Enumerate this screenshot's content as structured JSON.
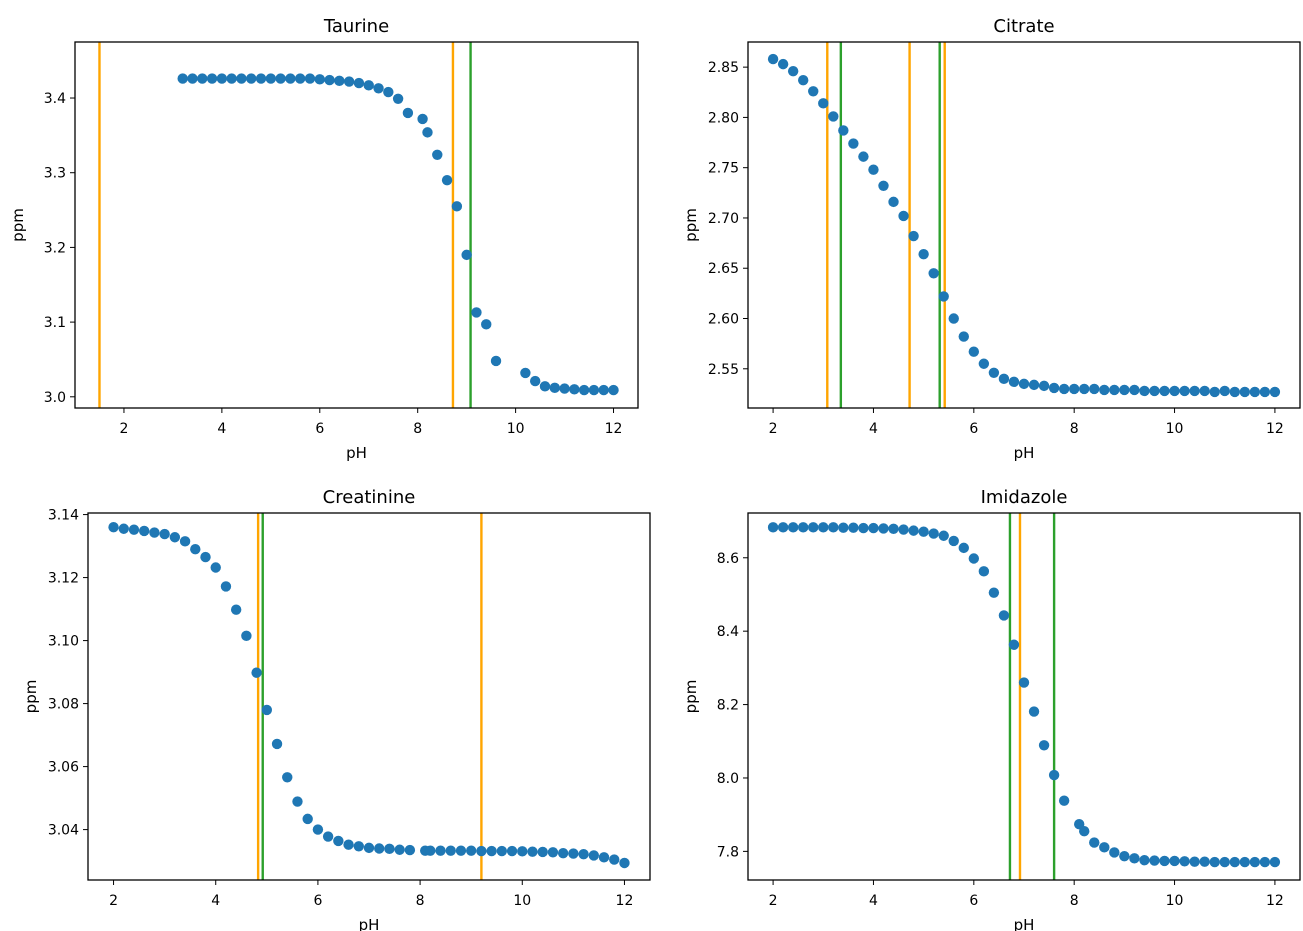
{
  "colors": {
    "marker": "#1f77b4",
    "orange_line": "#ffa500",
    "green_line": "#2ca02c"
  },
  "chart_data": [
    {
      "type": "scatter",
      "title": "Taurine",
      "xlabel": "pH",
      "ylabel": "ppm",
      "xlim": [
        1.0,
        12.5
      ],
      "ylim": [
        2.985,
        3.475
      ],
      "xticks": [
        2,
        4,
        6,
        8,
        10,
        12
      ],
      "yticks": [
        3.0,
        3.1,
        3.2,
        3.3,
        3.4
      ],
      "ytick_labels": [
        "3.0",
        "3.1",
        "3.2",
        "3.3",
        "3.4"
      ],
      "grid": false,
      "vlines_orange": [
        1.5,
        8.72
      ],
      "vlines_green": [
        9.08
      ],
      "x": [
        3.2,
        3.4,
        3.6,
        3.8,
        4.0,
        4.2,
        4.4,
        4.6,
        4.8,
        5.0,
        5.2,
        5.4,
        5.6,
        5.8,
        6.0,
        6.2,
        6.4,
        6.6,
        6.8,
        7.0,
        7.2,
        7.4,
        7.6,
        7.8,
        8.1,
        8.2,
        8.4,
        8.6,
        8.8,
        9.0,
        9.2,
        9.4,
        9.6,
        10.2,
        10.4,
        10.6,
        10.8,
        11.0,
        11.2,
        11.4,
        11.6,
        11.8,
        12.0
      ],
      "y": [
        3.426,
        3.426,
        3.426,
        3.426,
        3.426,
        3.426,
        3.426,
        3.426,
        3.426,
        3.426,
        3.426,
        3.426,
        3.426,
        3.426,
        3.425,
        3.424,
        3.423,
        3.422,
        3.42,
        3.417,
        3.413,
        3.408,
        3.399,
        3.38,
        3.372,
        3.354,
        3.324,
        3.29,
        3.255,
        3.19,
        3.113,
        3.097,
        3.048,
        3.032,
        3.021,
        3.014,
        3.012,
        3.011,
        3.01,
        3.009,
        3.009,
        3.009,
        3.009
      ]
    },
    {
      "type": "scatter",
      "title": "Citrate",
      "xlabel": "pH",
      "ylabel": "ppm",
      "xlim": [
        1.5,
        12.5
      ],
      "ylim": [
        2.511,
        2.875
      ],
      "xticks": [
        2,
        4,
        6,
        8,
        10,
        12
      ],
      "yticks": [
        2.55,
        2.6,
        2.65,
        2.7,
        2.75,
        2.8,
        2.85
      ],
      "ytick_labels": [
        "2.55",
        "2.60",
        "2.65",
        "2.70",
        "2.75",
        "2.80",
        "2.85"
      ],
      "grid": false,
      "vlines_orange": [
        3.08,
        4.72,
        5.42
      ],
      "vlines_green": [
        3.35,
        5.32
      ],
      "x": [
        2.0,
        2.2,
        2.4,
        2.6,
        2.8,
        3.0,
        3.2,
        3.4,
        3.6,
        3.8,
        4.0,
        4.2,
        4.4,
        4.6,
        4.8,
        5.0,
        5.2,
        5.4,
        5.6,
        5.8,
        6.0,
        6.2,
        6.4,
        6.6,
        6.8,
        7.0,
        7.2,
        7.4,
        7.6,
        7.8,
        8.0,
        8.2,
        8.4,
        8.6,
        8.8,
        9.0,
        9.2,
        9.4,
        9.6,
        9.8,
        10.0,
        10.2,
        10.4,
        10.6,
        10.8,
        11.0,
        11.2,
        11.4,
        11.6,
        11.8,
        12.0
      ],
      "y": [
        2.858,
        2.853,
        2.846,
        2.837,
        2.826,
        2.814,
        2.801,
        2.787,
        2.774,
        2.761,
        2.748,
        2.732,
        2.716,
        2.702,
        2.682,
        2.664,
        2.645,
        2.622,
        2.6,
        2.582,
        2.567,
        2.555,
        2.546,
        2.54,
        2.537,
        2.535,
        2.534,
        2.533,
        2.531,
        2.53,
        2.53,
        2.53,
        2.53,
        2.529,
        2.529,
        2.529,
        2.529,
        2.528,
        2.528,
        2.528,
        2.528,
        2.528,
        2.528,
        2.528,
        2.527,
        2.528,
        2.527,
        2.527,
        2.527,
        2.527,
        2.527
      ]
    },
    {
      "type": "scatter",
      "title": "Creatinine",
      "xlabel": "pH",
      "ylabel": "ppm",
      "xlim": [
        1.5,
        12.5
      ],
      "ylim": [
        3.024,
        3.1405
      ],
      "xticks": [
        2,
        4,
        6,
        8,
        10,
        12
      ],
      "yticks": [
        3.04,
        3.06,
        3.08,
        3.1,
        3.12,
        3.14
      ],
      "ytick_labels": [
        "3.04",
        "3.06",
        "3.08",
        "3.10",
        "3.12",
        "3.14"
      ],
      "grid": false,
      "vlines_orange": [
        4.83,
        9.2
      ],
      "vlines_green": [
        4.92
      ],
      "x": [
        2.0,
        2.2,
        2.4,
        2.6,
        2.8,
        3.0,
        3.2,
        3.4,
        3.6,
        3.8,
        4.0,
        4.2,
        4.4,
        4.6,
        4.8,
        5.0,
        5.2,
        5.4,
        5.6,
        5.8,
        6.0,
        6.2,
        6.4,
        6.6,
        6.8,
        7.0,
        7.2,
        7.4,
        7.6,
        7.8,
        8.1,
        8.2,
        8.4,
        8.6,
        8.8,
        9.0,
        9.2,
        9.4,
        9.6,
        9.8,
        10.0,
        10.2,
        10.4,
        10.6,
        10.8,
        11.0,
        11.2,
        11.4,
        11.6,
        11.8,
        12.0
      ],
      "y": [
        3.136,
        3.1355,
        3.1352,
        3.1348,
        3.1343,
        3.1338,
        3.1328,
        3.1315,
        3.129,
        3.1265,
        3.1232,
        3.1172,
        3.1098,
        3.1015,
        3.0898,
        3.078,
        3.0672,
        3.0566,
        3.0489,
        3.0434,
        3.04,
        3.0378,
        3.0364,
        3.0352,
        3.0347,
        3.0342,
        3.034,
        3.0339,
        3.0336,
        3.0335,
        3.0333,
        3.0333,
        3.0333,
        3.0333,
        3.0333,
        3.0333,
        3.0332,
        3.0332,
        3.0332,
        3.0332,
        3.0331,
        3.033,
        3.0329,
        3.0328,
        3.0325,
        3.0324,
        3.0322,
        3.0318,
        3.0312,
        3.0305,
        3.0294
      ]
    },
    {
      "type": "scatter",
      "title": "Imidazole",
      "xlabel": "pH",
      "ylabel": "ppm",
      "xlim": [
        1.5,
        12.5
      ],
      "ylim": [
        7.722,
        8.722
      ],
      "xticks": [
        2,
        4,
        6,
        8,
        10,
        12
      ],
      "yticks": [
        7.8,
        8.0,
        8.2,
        8.4,
        8.6
      ],
      "ytick_labels": [
        "7.8",
        "8.0",
        "8.2",
        "8.4",
        "8.6"
      ],
      "grid": false,
      "vlines_orange": [
        6.92
      ],
      "vlines_green": [
        6.72,
        7.6
      ],
      "x": [
        2.0,
        2.2,
        2.4,
        2.6,
        2.8,
        3.0,
        3.2,
        3.4,
        3.6,
        3.8,
        4.0,
        4.2,
        4.4,
        4.6,
        4.8,
        5.0,
        5.2,
        5.4,
        5.6,
        5.8,
        6.0,
        6.2,
        6.4,
        6.6,
        6.8,
        7.0,
        7.2,
        7.4,
        7.6,
        7.8,
        8.1,
        8.2,
        8.4,
        8.6,
        8.8,
        9.0,
        9.2,
        9.4,
        9.6,
        9.8,
        10.0,
        10.2,
        10.4,
        10.6,
        10.8,
        11.0,
        11.2,
        11.4,
        11.6,
        11.8,
        12.0
      ],
      "y": [
        8.683,
        8.683,
        8.683,
        8.683,
        8.683,
        8.683,
        8.683,
        8.682,
        8.682,
        8.681,
        8.681,
        8.68,
        8.679,
        8.677,
        8.674,
        8.671,
        8.666,
        8.66,
        8.646,
        8.627,
        8.598,
        8.563,
        8.505,
        8.443,
        8.363,
        8.26,
        8.181,
        8.089,
        8.008,
        7.938,
        7.874,
        7.855,
        7.824,
        7.811,
        7.797,
        7.787,
        7.781,
        7.776,
        7.775,
        7.774,
        7.774,
        7.773,
        7.772,
        7.772,
        7.771,
        7.771,
        7.771,
        7.771,
        7.771,
        7.771,
        7.771
      ]
    }
  ]
}
